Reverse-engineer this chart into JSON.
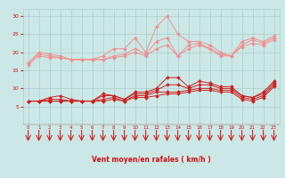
{
  "x": [
    0,
    1,
    2,
    3,
    4,
    5,
    6,
    7,
    8,
    9,
    10,
    11,
    12,
    13,
    14,
    15,
    16,
    17,
    18,
    19,
    20,
    21,
    22,
    23
  ],
  "line_upper_max": [
    17,
    20,
    19.5,
    19,
    18,
    18,
    18,
    19,
    21,
    21,
    24,
    20,
    27,
    30,
    25,
    23,
    23,
    22,
    20,
    19,
    23,
    24,
    23,
    24.5
  ],
  "line_upper_mid": [
    17,
    19.5,
    19,
    18.5,
    18,
    18,
    18,
    18,
    19,
    19.5,
    21,
    19.5,
    23,
    24,
    19,
    22,
    22.5,
    21,
    19,
    19,
    22,
    23.5,
    22.5,
    24
  ],
  "line_upper_avg": [
    16.5,
    19,
    18.5,
    18.5,
    18,
    18,
    18,
    18,
    18.5,
    19,
    20,
    19,
    21,
    22,
    19,
    21,
    22,
    21,
    19.5,
    19,
    21.5,
    22.5,
    22,
    23.5
  ],
  "line_lower_max": [
    6.5,
    6.5,
    7.5,
    8,
    7,
    6.5,
    6.5,
    8.5,
    8,
    7,
    9,
    9,
    10,
    13,
    13,
    10.5,
    12,
    11.5,
    10.5,
    10.5,
    8,
    7.5,
    9,
    12
  ],
  "line_lower_mid": [
    6.5,
    6.5,
    7,
    7,
    6.5,
    6.5,
    6.5,
    8,
    8,
    7,
    8.5,
    8.5,
    9.5,
    11,
    11,
    10,
    11,
    11,
    10,
    10,
    8,
    7.5,
    8.5,
    11.5
  ],
  "line_lower_avg": [
    6.5,
    6.5,
    6.5,
    6.5,
    6.5,
    6.5,
    6.5,
    7,
    7.5,
    6.5,
    8,
    8,
    9,
    9,
    9,
    9.5,
    10,
    10,
    9.5,
    9.5,
    7.5,
    7,
    8,
    11
  ],
  "line_lower_min": [
    6.5,
    6.5,
    6.5,
    6.5,
    6.5,
    6.5,
    6.5,
    6.5,
    7,
    6.5,
    7.5,
    7.5,
    8,
    8.5,
    8.5,
    9,
    9.5,
    9.5,
    9,
    9,
    7,
    6.5,
    7.5,
    10.5
  ],
  "bg_color": "#cce8e6",
  "grid_color": "#aaccca",
  "line_color_light": "#f09090",
  "line_color_dark": "#cc2222",
  "xlabel": "Vent moyen/en rafales ( km/h )",
  "xlabel_color": "#cc1111",
  "tick_color": "#cc1111",
  "arrow_color": "#cc2222",
  "ylim": [
    0,
    32
  ],
  "xlim": [
    -0.5,
    23.5
  ],
  "yticks": [
    5,
    10,
    15,
    20,
    25,
    30
  ]
}
